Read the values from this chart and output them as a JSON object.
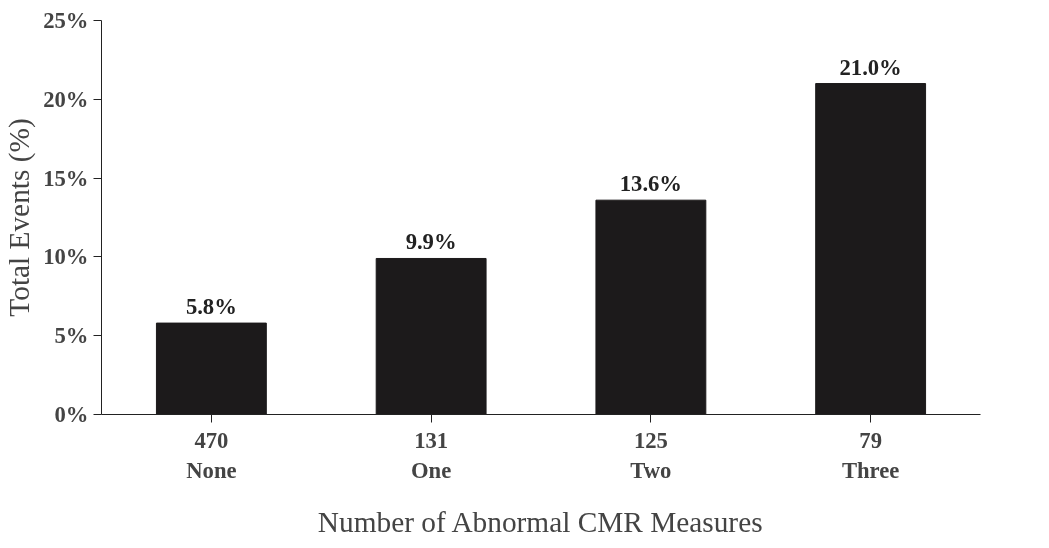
{
  "chart_data": {
    "type": "bar",
    "xlabel": "Number of Abnormal CMR Measures",
    "ylabel": "Total Events (%)",
    "categories": [
      "470\nNone",
      "131\nOne",
      "125\nTwo",
      "79\nThree"
    ],
    "values": [
      5.8,
      9.9,
      13.6,
      21.0
    ],
    "value_labels": [
      "5.8%",
      "9.9%",
      "13.6%",
      "21.0%"
    ],
    "color": "#1c1a1b",
    "ylim": [
      0,
      25
    ],
    "yticks": [
      {
        "value": 0,
        "label": "0%"
      },
      {
        "value": 5,
        "label": "5%"
      },
      {
        "value": 10,
        "label": "10%"
      },
      {
        "value": 15,
        "label": "15%"
      },
      {
        "value": 20,
        "label": "20%"
      },
      {
        "value": 25,
        "label": "25%"
      }
    ],
    "grid": false
  }
}
